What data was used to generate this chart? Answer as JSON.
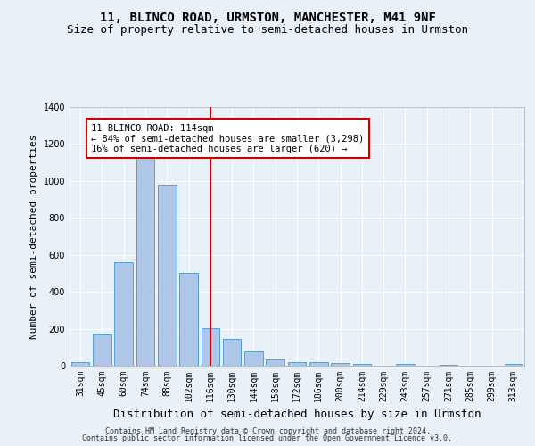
{
  "title": "11, BLINCO ROAD, URMSTON, MANCHESTER, M41 9NF",
  "subtitle": "Size of property relative to semi-detached houses in Urmston",
  "xlabel": "Distribution of semi-detached houses by size in Urmston",
  "ylabel": "Number of semi-detached properties",
  "footer_line1": "Contains HM Land Registry data © Crown copyright and database right 2024.",
  "footer_line2": "Contains public sector information licensed under the Open Government Licence v3.0.",
  "categories": [
    "31sqm",
    "45sqm",
    "60sqm",
    "74sqm",
    "88sqm",
    "102sqm",
    "116sqm",
    "130sqm",
    "144sqm",
    "158sqm",
    "172sqm",
    "186sqm",
    "200sqm",
    "214sqm",
    "229sqm",
    "243sqm",
    "257sqm",
    "271sqm",
    "285sqm",
    "299sqm",
    "313sqm"
  ],
  "values": [
    20,
    175,
    560,
    1190,
    980,
    500,
    205,
    145,
    75,
    35,
    20,
    20,
    15,
    10,
    0,
    10,
    0,
    5,
    0,
    0,
    10
  ],
  "bar_color": "#aec6e8",
  "bar_edge_color": "#5a9fd4",
  "vline_x_index": 6,
  "vline_color": "#cc0000",
  "vline_label": "11 BLINCO ROAD: 114sqm",
  "annotation_smaller": "← 84% of semi-detached houses are smaller (3,298)",
  "annotation_larger": "16% of semi-detached houses are larger (620) →",
  "annotation_box_color": "#ffffff",
  "annotation_box_edge": "#cc0000",
  "ylim": [
    0,
    1400
  ],
  "yticks": [
    0,
    200,
    400,
    600,
    800,
    1000,
    1200,
    1400
  ],
  "background_color": "#e8f0f8",
  "axes_bg_color": "#e8f0f8",
  "grid_color": "#ffffff",
  "title_fontsize": 10,
  "subtitle_fontsize": 9,
  "xlabel_fontsize": 9,
  "ylabel_fontsize": 8,
  "tick_fontsize": 7,
  "footer_fontsize": 6,
  "annot_fontsize": 7.5
}
